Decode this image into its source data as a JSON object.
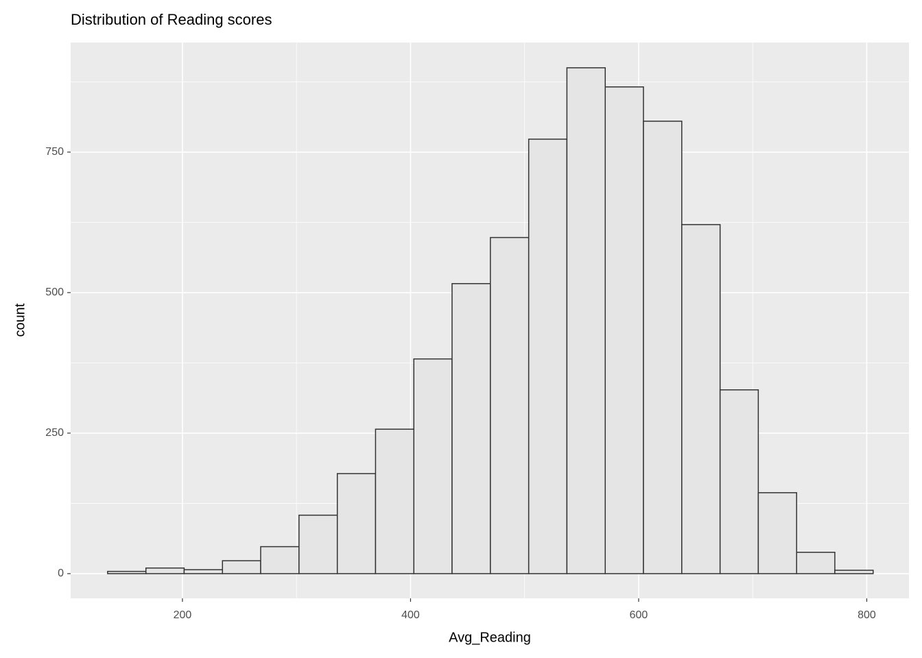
{
  "chart_data": {
    "type": "histogram",
    "title": "Distribution of Reading scores",
    "x_label": "Avg_Reading",
    "y_label": "count",
    "bins": [
      134.4,
      168.0,
      201.5,
      235.1,
      268.6,
      302.2,
      335.8,
      369.3,
      402.9,
      436.4,
      470.0,
      503.6,
      537.1,
      570.7,
      604.2,
      637.8,
      671.4,
      704.9,
      738.5,
      772.0,
      805.6
    ],
    "counts": [
      4,
      10,
      7,
      23,
      48,
      104,
      178,
      257,
      382,
      516,
      598,
      773,
      900,
      866,
      805,
      621,
      327,
      144,
      38,
      6
    ],
    "fill": "#e5e5e5",
    "edge_color": "#333333",
    "xlim": [
      102,
      837
    ],
    "ylim": [
      -44,
      945
    ],
    "xticks": [
      200,
      400,
      600,
      800
    ],
    "yticks": [
      0,
      250,
      500,
      750
    ],
    "grid": true
  }
}
